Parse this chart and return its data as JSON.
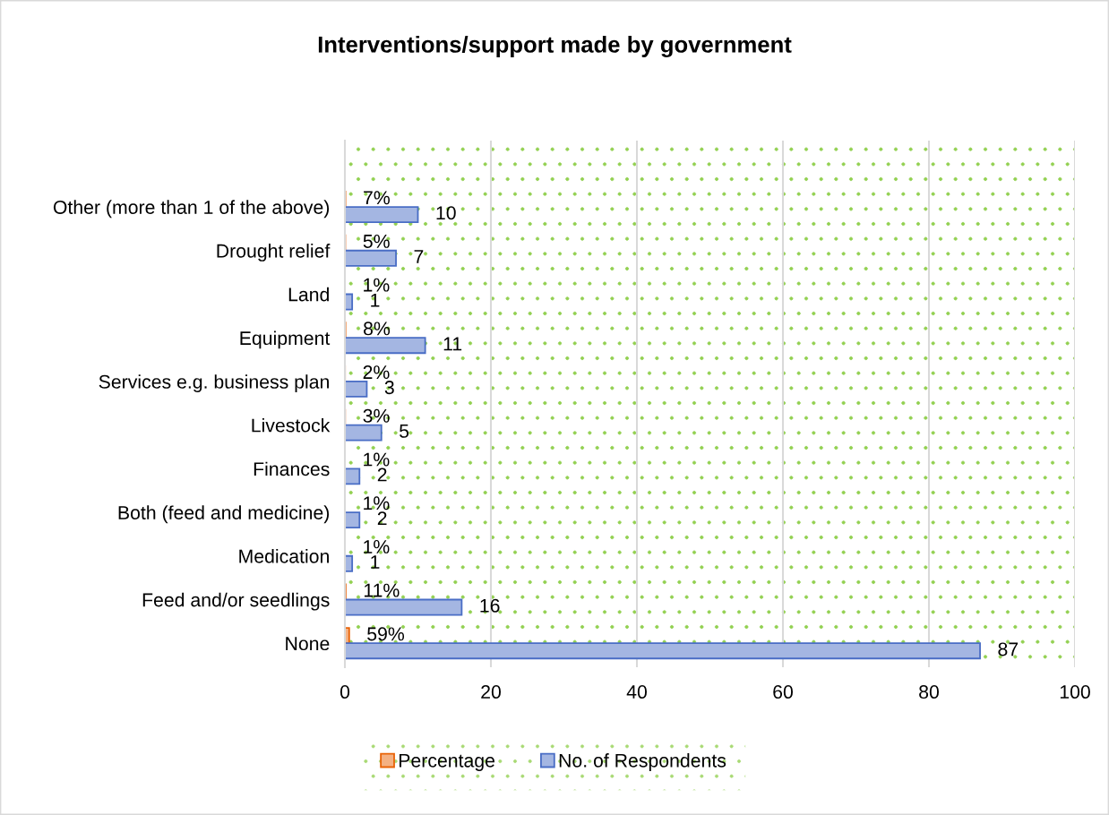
{
  "chart_data": {
    "type": "bar",
    "orientation": "horizontal",
    "title": "Interventions/support made by government",
    "categories": [
      "Other (more than 1 of the above)",
      "Drought relief",
      "Land",
      "Equipment",
      "Services e.g. business plan",
      "Livestock",
      "Finances",
      "Both (feed and medicine)",
      "Medication",
      "Feed and/or seedlings",
      "None"
    ],
    "series": [
      {
        "name": "Percentage",
        "color": "#f4b183",
        "values": [
          0.07,
          0.05,
          0.01,
          0.08,
          0.02,
          0.03,
          0.01,
          0.01,
          0.01,
          0.11,
          0.59
        ],
        "value_labels": [
          "7%",
          "5%",
          "1%",
          "8%",
          "2%",
          "3%",
          "1%",
          "1%",
          "1%",
          "11%",
          "59%"
        ]
      },
      {
        "name": "No. of Respondents",
        "color": "#a4b6e2",
        "values": [
          10,
          7,
          1,
          11,
          3,
          5,
          2,
          2,
          1,
          16,
          87
        ],
        "value_labels": [
          "10",
          "7",
          "1",
          "11",
          "3",
          "5",
          "2",
          "2",
          "1",
          "16",
          "87"
        ]
      }
    ],
    "xlim": [
      0,
      100
    ],
    "xticks": [
      0,
      20,
      40,
      60,
      80,
      100
    ],
    "grid": "x",
    "legend": "bottom"
  }
}
